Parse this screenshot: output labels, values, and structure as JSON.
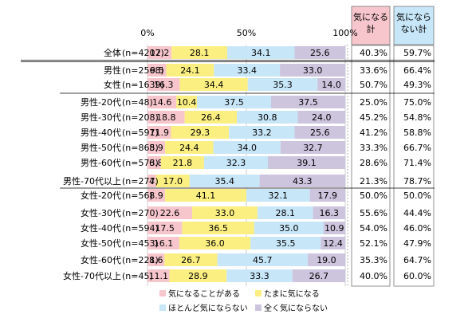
{
  "chart_data": {
    "type": "bar",
    "orientation": "horizontal",
    "stacked": true,
    "percent_stacked": true,
    "x_ticks": [
      "0%",
      "50%",
      "100%"
    ],
    "xlim": [
      0,
      100
    ],
    "categories": [
      "全体 (n=4207)",
      "男性 (n=2568)",
      "女性 (n=1639)",
      "男性-20代 (n=48)",
      "男性-30代 (n=208)",
      "男性-40代 (n=597)",
      "男性-50代 (n=865)",
      "男性-60代 (n=573)",
      "男性-70代以上 (n=277)",
      "女性-20代 (n=56)",
      "女性-30代 (n=270)",
      "女性-40代 (n=594)",
      "女性-50代 (n=453)",
      "女性-60代 (n=221)",
      "女性-70代以上 (n=45)"
    ],
    "category_names": [
      "全体",
      "男性",
      "女性",
      "男性-20代",
      "男性-30代",
      "男性-40代",
      "男性-50代",
      "男性-60代",
      "男性-70代以上",
      "女性-20代",
      "女性-30代",
      "女性-40代",
      "女性-50代",
      "女性-60代",
      "女性-70代以上"
    ],
    "category_n": [
      "(n=4207)",
      "(n=2568)",
      "(n=1639)",
      "(n=48)",
      "(n=208)",
      "(n=597)",
      "(n=865)",
      "(n=573)",
      "(n=277)",
      "(n=56)",
      "(n=270)",
      "(n=594)",
      "(n=453)",
      "(n=221)",
      "(n=45)"
    ],
    "series": [
      {
        "name": "気になることがある",
        "color": "#f7c6cc",
        "values": [
          12.2,
          9.5,
          16.3,
          14.6,
          18.8,
          11.9,
          8.9,
          6.8,
          4.3,
          8.9,
          22.6,
          17.5,
          16.1,
          8.6,
          11.1
        ]
      },
      {
        "name": "たまに気になる",
        "color": "#fbef82",
        "values": [
          28.1,
          24.1,
          34.4,
          10.4,
          26.4,
          29.3,
          24.4,
          21.8,
          17.0,
          41.1,
          33.0,
          36.5,
          36.0,
          26.7,
          28.9
        ]
      },
      {
        "name": "ほとんど気にならない",
        "color": "#c7e6f8",
        "values": [
          34.1,
          33.4,
          35.3,
          37.5,
          30.8,
          33.2,
          34.0,
          32.3,
          35.4,
          32.1,
          28.1,
          35.0,
          35.5,
          45.7,
          33.3
        ]
      },
      {
        "name": "全く気にならない",
        "color": "#cdc4de",
        "values": [
          25.6,
          33.0,
          14.0,
          37.5,
          24.0,
          25.6,
          32.7,
          39.1,
          43.3,
          17.9,
          16.3,
          10.9,
          12.4,
          19.0,
          26.7
        ]
      }
    ],
    "legend_position": "bottom",
    "summary_columns": [
      {
        "header_lines": [
          "気になる",
          "計"
        ],
        "color": "#f7c6cc",
        "values": [
          "40.3%",
          "33.6%",
          "50.7%",
          "25.0%",
          "45.2%",
          "41.2%",
          "33.3%",
          "28.6%",
          "21.3%",
          "50.0%",
          "55.6%",
          "54.0%",
          "52.1%",
          "35.3%",
          "40.0%"
        ]
      },
      {
        "header_lines": [
          "気になら",
          "ない計"
        ],
        "color": "#c7e6f8",
        "values": [
          "59.7%",
          "66.4%",
          "49.3%",
          "75.0%",
          "54.8%",
          "58.8%",
          "66.7%",
          "71.4%",
          "78.7%",
          "50.0%",
          "44.4%",
          "46.0%",
          "47.9%",
          "64.7%",
          "60.0%"
        ]
      }
    ]
  }
}
